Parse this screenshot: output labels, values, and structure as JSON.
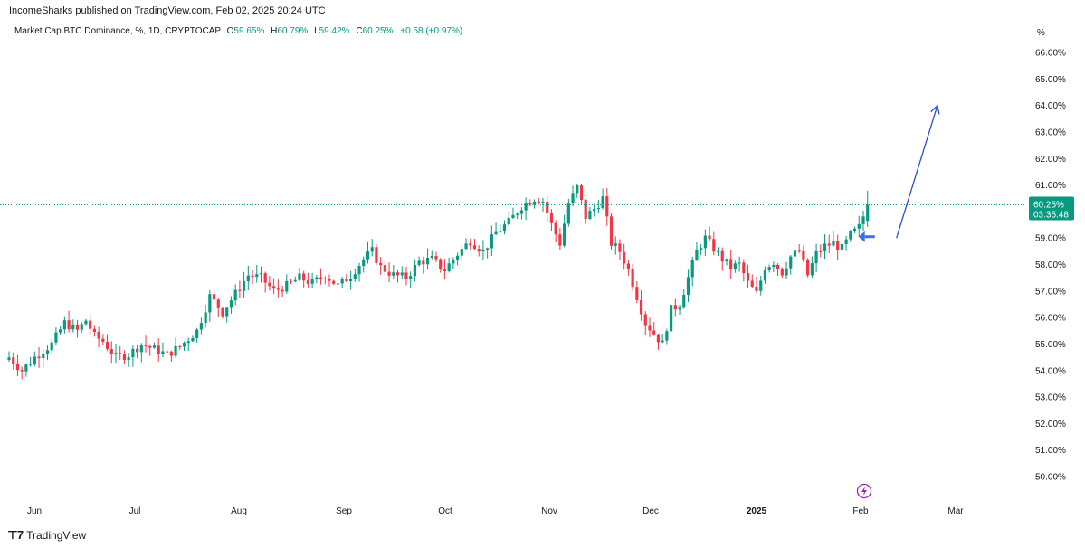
{
  "header": {
    "published": "IncomeSharks published on TradingView.com, Feb 02, 2025 20:24 UTC"
  },
  "legend": {
    "symbol": "Market Cap BTC Dominance, %, 1D, CRYPTOCAP",
    "o_label": "O",
    "o_value": "59.65%",
    "h_label": "H",
    "h_value": "60.79%",
    "l_label": "L",
    "l_value": "59.42%",
    "c_label": "C",
    "c_value": "60.25%",
    "change": "+0.58 (+0.97%)"
  },
  "price_tag": {
    "value": "60.25%",
    "countdown": "03:35:48",
    "color": "#089981"
  },
  "footer": {
    "brand": "TradingView"
  },
  "colors": {
    "up": "#089981",
    "down": "#f23645",
    "arrow": "#2a4dd0",
    "event": "#9c27b0"
  },
  "chart_data": {
    "type": "candlestick",
    "unit_label": "%",
    "y_ticks": [
      "66.00%",
      "65.00%",
      "64.00%",
      "63.00%",
      "62.00%",
      "61.00%",
      "60.00%",
      "59.00%",
      "58.00%",
      "57.00%",
      "56.00%",
      "55.00%",
      "54.00%",
      "53.00%",
      "52.00%",
      "51.00%",
      "50.00%"
    ],
    "x_ticks": [
      {
        "label": "Jun",
        "bold": false
      },
      {
        "label": "Jul",
        "bold": false
      },
      {
        "label": "Aug",
        "bold": false
      },
      {
        "label": "Sep",
        "bold": false
      },
      {
        "label": "Oct",
        "bold": false
      },
      {
        "label": "Nov",
        "bold": false
      },
      {
        "label": "Dec",
        "bold": false
      },
      {
        "label": "2025",
        "bold": true
      },
      {
        "label": "Feb",
        "bold": false
      },
      {
        "label": "Mar",
        "bold": false
      }
    ],
    "ylim": [
      50,
      66
    ],
    "last_close": 60.25,
    "close_path": [
      [
        0,
        54.5
      ],
      [
        3,
        54.0
      ],
      [
        6,
        54.5
      ],
      [
        10,
        55.0
      ],
      [
        13,
        55.8
      ],
      [
        16,
        55.5
      ],
      [
        18,
        55.9
      ],
      [
        20,
        55.3
      ],
      [
        22,
        55.1
      ],
      [
        25,
        54.5
      ],
      [
        28,
        54.6
      ],
      [
        31,
        55.0
      ],
      [
        34,
        54.8
      ],
      [
        37,
        54.6
      ],
      [
        40,
        54.9
      ],
      [
        44,
        55.5
      ],
      [
        47,
        56.8
      ],
      [
        50,
        56.2
      ],
      [
        53,
        56.9
      ],
      [
        56,
        57.6
      ],
      [
        59,
        57.5
      ],
      [
        62,
        57.0
      ],
      [
        65,
        57.2
      ],
      [
        68,
        57.5
      ],
      [
        71,
        57.3
      ],
      [
        74,
        57.6
      ],
      [
        77,
        57.2
      ],
      [
        80,
        57.6
      ],
      [
        83,
        58.2
      ],
      [
        85,
        58.5
      ],
      [
        87,
        57.9
      ],
      [
        90,
        57.6
      ],
      [
        93,
        57.5
      ],
      [
        96,
        58.1
      ],
      [
        99,
        58.2
      ],
      [
        102,
        57.8
      ],
      [
        105,
        58.4
      ],
      [
        108,
        58.9
      ],
      [
        111,
        58.5
      ],
      [
        114,
        59.2
      ],
      [
        117,
        59.6
      ],
      [
        120,
        60.2
      ],
      [
        123,
        60.5
      ],
      [
        125,
        60.4
      ],
      [
        127,
        59.5
      ],
      [
        129,
        58.8
      ],
      [
        131,
        60.3
      ],
      [
        133,
        60.9
      ],
      [
        135,
        59.8
      ],
      [
        137,
        60.1
      ],
      [
        139,
        60.5
      ],
      [
        141,
        58.8
      ],
      [
        143,
        58.5
      ],
      [
        145,
        57.8
      ],
      [
        147,
        56.8
      ],
      [
        149,
        55.8
      ],
      [
        151,
        55.4
      ],
      [
        153,
        55.0
      ],
      [
        155,
        56.3
      ],
      [
        157,
        56.5
      ],
      [
        159,
        57.5
      ],
      [
        161,
        58.5
      ],
      [
        163,
        59.0
      ],
      [
        165,
        58.6
      ],
      [
        167,
        58.2
      ],
      [
        169,
        57.9
      ],
      [
        171,
        58.0
      ],
      [
        173,
        57.3
      ],
      [
        175,
        56.9
      ],
      [
        177,
        57.9
      ],
      [
        179,
        58.1
      ],
      [
        181,
        57.7
      ],
      [
        183,
        58.3
      ],
      [
        185,
        58.5
      ],
      [
        187,
        57.6
      ],
      [
        189,
        58.4
      ],
      [
        191,
        58.7
      ],
      [
        193,
        58.8
      ],
      [
        195,
        58.6
      ],
      [
        197,
        59.1
      ],
      [
        199,
        59.4
      ],
      [
        201,
        60.25
      ]
    ],
    "arrow": {
      "from": [
        201,
        59.0
      ],
      "to": [
        211,
        64.0
      ]
    }
  }
}
